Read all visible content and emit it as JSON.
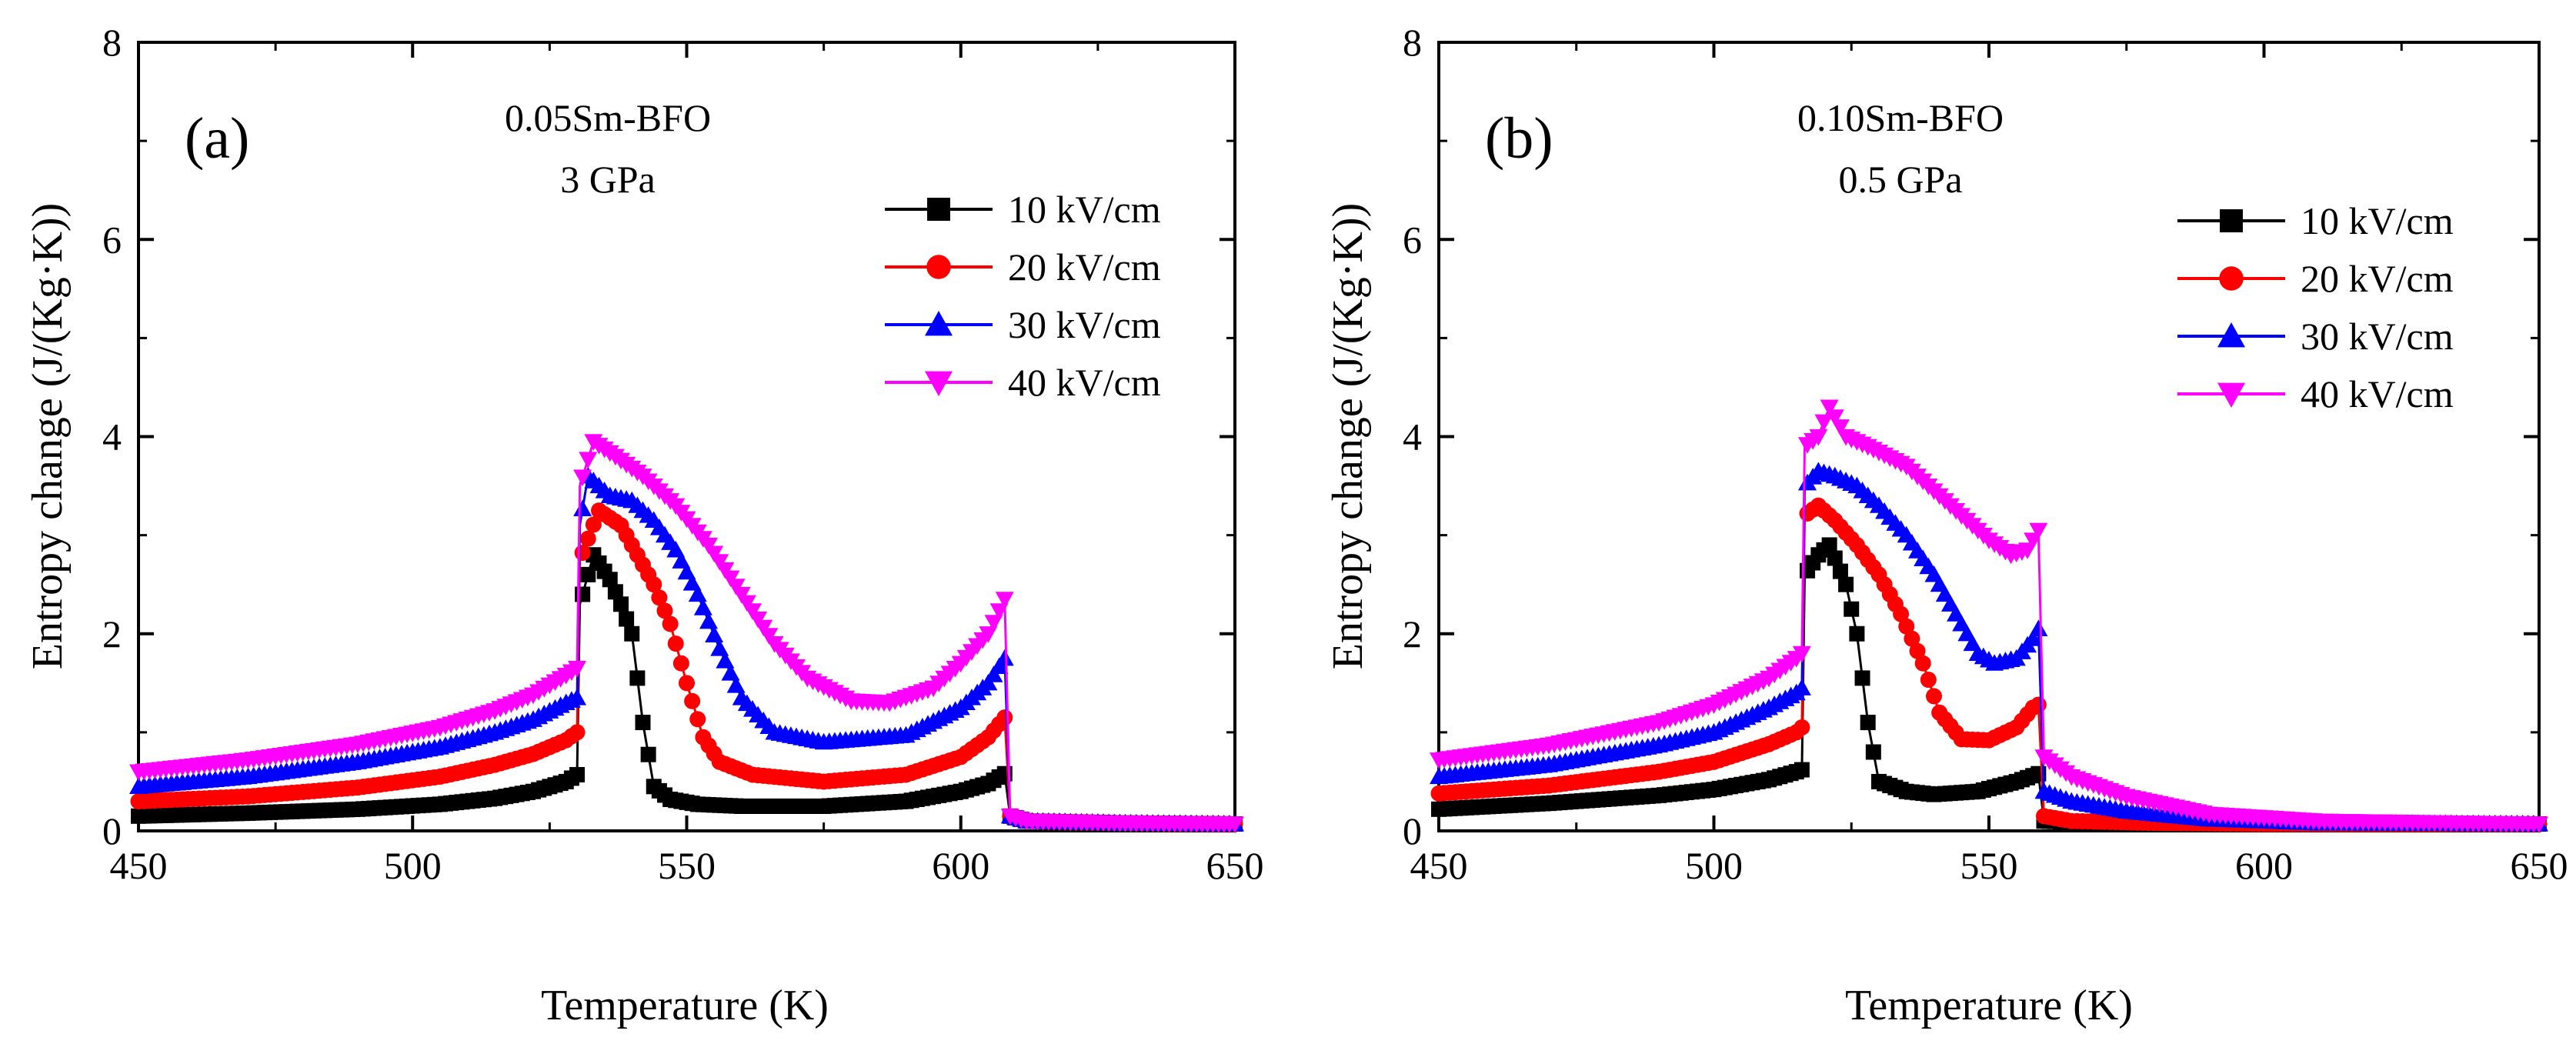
{
  "figure": {
    "panels": [
      {
        "letter": "(a)",
        "annotation_lines": [
          "0.05Sm-BFO",
          "3 GPa"
        ]
      },
      {
        "letter": "(b)",
        "annotation_lines": [
          "0.10Sm-BFO",
          "0.5 GPa"
        ]
      }
    ]
  },
  "series_styles": [
    {
      "name": "10 kV/cm",
      "color": "#000000",
      "marker": "square"
    },
    {
      "name": "20 kV/cm",
      "color": "#ff0000",
      "marker": "circle"
    },
    {
      "name": "30 kV/cm",
      "color": "#0000ff",
      "marker": "triangle-up"
    },
    {
      "name": "40 kV/cm",
      "color": "#ff00ff",
      "marker": "triangle-down"
    }
  ],
  "chart_data": [
    {
      "type": "scatter",
      "title": "",
      "xlabel": "Temperature (K)",
      "ylabel": "Entropy change (J/(Kg·K))",
      "xlim": [
        450,
        650
      ],
      "ylim": [
        0,
        8
      ],
      "xticks": [
        450,
        500,
        550,
        600,
        650
      ],
      "yticks": [
        0,
        2,
        4,
        6,
        8
      ],
      "legend": "right, upper-middle",
      "series": [
        {
          "name": "10 kV/cm",
          "points": [
            [
              450,
              0.15
            ],
            [
              470,
              0.18
            ],
            [
              490,
              0.22
            ],
            [
              505,
              0.27
            ],
            [
              515,
              0.33
            ],
            [
              522,
              0.4
            ],
            [
              528,
              0.5
            ],
            [
              530,
              0.57
            ],
            [
              530.5,
              2.3
            ],
            [
              533,
              2.8
            ],
            [
              536,
              2.55
            ],
            [
              538,
              2.3
            ],
            [
              540,
              2.0
            ],
            [
              542,
              1.1
            ],
            [
              544,
              0.45
            ],
            [
              547,
              0.32
            ],
            [
              552,
              0.27
            ],
            [
              560,
              0.25
            ],
            [
              575,
              0.25
            ],
            [
              590,
              0.3
            ],
            [
              600,
              0.4
            ],
            [
              605,
              0.48
            ],
            [
              608,
              0.58
            ],
            [
              609,
              0.15
            ],
            [
              612,
              0.1
            ],
            [
              630,
              0.08
            ],
            [
              650,
              0.07
            ]
          ]
        },
        {
          "name": "20 kV/cm",
          "points": [
            [
              450,
              0.3
            ],
            [
              470,
              0.35
            ],
            [
              490,
              0.44
            ],
            [
              505,
              0.55
            ],
            [
              515,
              0.67
            ],
            [
              522,
              0.78
            ],
            [
              528,
              0.92
            ],
            [
              530,
              1.0
            ],
            [
              530.5,
              2.75
            ],
            [
              534,
              3.25
            ],
            [
              538,
              3.1
            ],
            [
              541,
              2.8
            ],
            [
              544,
              2.5
            ],
            [
              547,
              2.1
            ],
            [
              550,
              1.5
            ],
            [
              553,
              0.95
            ],
            [
              556,
              0.7
            ],
            [
              562,
              0.57
            ],
            [
              575,
              0.5
            ],
            [
              590,
              0.57
            ],
            [
              600,
              0.75
            ],
            [
              605,
              0.95
            ],
            [
              608,
              1.15
            ],
            [
              609,
              0.15
            ],
            [
              612,
              0.1
            ],
            [
              630,
              0.08
            ],
            [
              650,
              0.07
            ]
          ]
        },
        {
          "name": "30 kV/cm",
          "points": [
            [
              450,
              0.45
            ],
            [
              470,
              0.55
            ],
            [
              490,
              0.7
            ],
            [
              505,
              0.85
            ],
            [
              515,
              1.0
            ],
            [
              522,
              1.13
            ],
            [
              528,
              1.3
            ],
            [
              530,
              1.35
            ],
            [
              530.5,
              3.1
            ],
            [
              532,
              3.6
            ],
            [
              536,
              3.4
            ],
            [
              540,
              3.35
            ],
            [
              544,
              3.15
            ],
            [
              548,
              2.85
            ],
            [
              552,
              2.4
            ],
            [
              556,
              1.85
            ],
            [
              560,
              1.35
            ],
            [
              566,
              1.0
            ],
            [
              575,
              0.9
            ],
            [
              590,
              0.97
            ],
            [
              600,
              1.25
            ],
            [
              605,
              1.5
            ],
            [
              608,
              1.75
            ],
            [
              609,
              0.15
            ],
            [
              612,
              0.1
            ],
            [
              630,
              0.08
            ],
            [
              650,
              0.07
            ]
          ]
        },
        {
          "name": "40 kV/cm",
          "points": [
            [
              450,
              0.6
            ],
            [
              470,
              0.72
            ],
            [
              490,
              0.88
            ],
            [
              505,
              1.05
            ],
            [
              515,
              1.22
            ],
            [
              522,
              1.38
            ],
            [
              528,
              1.58
            ],
            [
              530,
              1.65
            ],
            [
              530.5,
              3.5
            ],
            [
              533,
              3.95
            ],
            [
              537,
              3.8
            ],
            [
              542,
              3.6
            ],
            [
              548,
              3.3
            ],
            [
              554,
              2.9
            ],
            [
              560,
              2.4
            ],
            [
              566,
              1.9
            ],
            [
              572,
              1.55
            ],
            [
              580,
              1.32
            ],
            [
              587,
              1.3
            ],
            [
              595,
              1.45
            ],
            [
              600,
              1.7
            ],
            [
              605,
              2.0
            ],
            [
              608,
              2.35
            ],
            [
              609,
              0.15
            ],
            [
              612,
              0.1
            ],
            [
              630,
              0.08
            ],
            [
              650,
              0.07
            ]
          ]
        }
      ]
    },
    {
      "type": "scatter",
      "title": "",
      "xlabel": "Temperature (K)",
      "ylabel": "Entropy change (J/(Kg·K))",
      "xlim": [
        450,
        650
      ],
      "ylim": [
        0,
        8
      ],
      "xticks": [
        450,
        500,
        550,
        600,
        650
      ],
      "yticks": [
        0,
        2,
        4,
        6,
        8
      ],
      "legend": "right, upper-middle",
      "series": [
        {
          "name": "10 kV/cm",
          "points": [
            [
              450,
              0.22
            ],
            [
              470,
              0.28
            ],
            [
              490,
              0.36
            ],
            [
              500,
              0.42
            ],
            [
              510,
              0.52
            ],
            [
              515,
              0.6
            ],
            [
              516,
              0.62
            ],
            [
              516.5,
              2.6
            ],
            [
              519,
              2.8
            ],
            [
              521,
              2.9
            ],
            [
              524,
              2.5
            ],
            [
              526,
              2.0
            ],
            [
              528,
              1.1
            ],
            [
              530,
              0.5
            ],
            [
              535,
              0.4
            ],
            [
              540,
              0.37
            ],
            [
              548,
              0.4
            ],
            [
              555,
              0.5
            ],
            [
              559,
              0.58
            ],
            [
              560,
              0.1
            ],
            [
              570,
              0.08
            ],
            [
              600,
              0.07
            ],
            [
              650,
              0.07
            ]
          ]
        },
        {
          "name": "20 kV/cm",
          "points": [
            [
              450,
              0.38
            ],
            [
              470,
              0.46
            ],
            [
              490,
              0.6
            ],
            [
              500,
              0.7
            ],
            [
              510,
              0.88
            ],
            [
              515,
              1.0
            ],
            [
              516,
              1.05
            ],
            [
              516.5,
              3.2
            ],
            [
              519,
              3.3
            ],
            [
              522,
              3.15
            ],
            [
              526,
              2.9
            ],
            [
              530,
              2.6
            ],
            [
              534,
              2.2
            ],
            [
              538,
              1.7
            ],
            [
              541,
              1.2
            ],
            [
              545,
              0.93
            ],
            [
              550,
              0.92
            ],
            [
              555,
              1.05
            ],
            [
              558,
              1.25
            ],
            [
              559,
              1.28
            ],
            [
              560,
              0.15
            ],
            [
              565,
              0.1
            ],
            [
              580,
              0.08
            ],
            [
              600,
              0.07
            ],
            [
              650,
              0.07
            ]
          ]
        },
        {
          "name": "30 kV/cm",
          "points": [
            [
              450,
              0.55
            ],
            [
              470,
              0.67
            ],
            [
              490,
              0.87
            ],
            [
              500,
              1.0
            ],
            [
              510,
              1.25
            ],
            [
              515,
              1.4
            ],
            [
              516,
              1.45
            ],
            [
              516.5,
              3.5
            ],
            [
              519,
              3.65
            ],
            [
              522,
              3.6
            ],
            [
              526,
              3.5
            ],
            [
              530,
              3.3
            ],
            [
              535,
              3.0
            ],
            [
              540,
              2.6
            ],
            [
              545,
              2.1
            ],
            [
              548,
              1.8
            ],
            [
              551,
              1.7
            ],
            [
              555,
              1.75
            ],
            [
              558,
              1.95
            ],
            [
              559,
              2.05
            ],
            [
              560,
              0.4
            ],
            [
              565,
              0.3
            ],
            [
              575,
              0.2
            ],
            [
              590,
              0.12
            ],
            [
              610,
              0.08
            ],
            [
              650,
              0.07
            ]
          ]
        },
        {
          "name": "40 kV/cm",
          "points": [
            [
              450,
              0.72
            ],
            [
              470,
              0.87
            ],
            [
              490,
              1.1
            ],
            [
              500,
              1.28
            ],
            [
              510,
              1.55
            ],
            [
              515,
              1.75
            ],
            [
              516,
              1.8
            ],
            [
              516.5,
              3.9
            ],
            [
              519,
              4.0
            ],
            [
              521,
              4.3
            ],
            [
              524,
              4.0
            ],
            [
              528,
              3.9
            ],
            [
              535,
              3.7
            ],
            [
              540,
              3.45
            ],
            [
              545,
              3.2
            ],
            [
              550,
              2.95
            ],
            [
              554,
              2.8
            ],
            [
              557,
              2.85
            ],
            [
              559,
              3.05
            ],
            [
              560,
              0.75
            ],
            [
              565,
              0.55
            ],
            [
              575,
              0.35
            ],
            [
              590,
              0.17
            ],
            [
              610,
              0.1
            ],
            [
              650,
              0.07
            ]
          ]
        }
      ]
    }
  ]
}
